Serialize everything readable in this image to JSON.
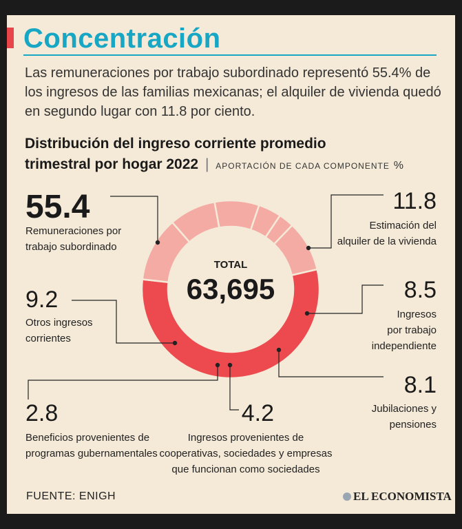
{
  "header": {
    "title": "Concentración",
    "intro": "Las remuneraciones por trabajo subordinado representó 55.4% de los ingresos de las familias mexicanas; el alquiler de vivienda quedó en segundo lugar con 11.8 por ciento."
  },
  "chart_data": {
    "type": "pie",
    "title_line1": "Distribución del ingreso corriente promedio",
    "title_line2": "trimestral por hogar 2022",
    "separator": "|",
    "subtitle": "Aportación de cada componente",
    "unit": "%",
    "center_label": "TOTAL",
    "center_value": "63,695",
    "slices": [
      {
        "value": 55.4,
        "value_label": "55.4",
        "label": [
          "Remuneraciones por",
          "trabajo subordinado"
        ],
        "color": "#ed4a4f"
      },
      {
        "value": 11.8,
        "value_label": "11.8",
        "label": [
          "Estimación del",
          "alquiler de la vivienda"
        ],
        "color": "#f3aba3"
      },
      {
        "value": 8.5,
        "value_label": "8.5",
        "label": [
          "Ingresos",
          "por trabajo",
          "independiente"
        ],
        "color": "#f3aba3"
      },
      {
        "value": 8.1,
        "value_label": "8.1",
        "label": [
          "Jubilaciones y",
          "pensiones"
        ],
        "color": "#f3aba3"
      },
      {
        "value": 4.2,
        "value_label": "4.2",
        "label": [
          "Ingresos provenientes de",
          "cooperativas, sociedades y empresas",
          "que funcionan como sociedades"
        ],
        "color": "#f3aba3"
      },
      {
        "value": 2.8,
        "value_label": "2.8",
        "label": [
          "Beneficios provenientes de",
          "programas gubernamentales"
        ],
        "color": "#f3aba3"
      },
      {
        "value": 9.2,
        "value_label": "9.2",
        "label": [
          "Otros ingresos",
          "corrientes"
        ],
        "color": "#f3aba3"
      }
    ]
  },
  "footer": {
    "source": "FUENTE: ENIGH",
    "logo": "EL ECONOMISTA"
  }
}
